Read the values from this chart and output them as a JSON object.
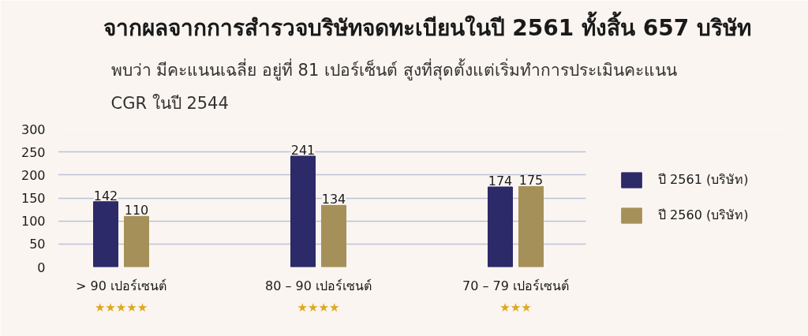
{
  "chart_data": {
    "type": "bar",
    "title": "จากผลจากการสำรวจบริษัทจดทะเบียนในปี 2561 ทั้งสิ้น 657 บริษัท",
    "subtitle": "พบว่า มีคะแนนเฉลี่ย อยู่ที่ 81 เปอร์เซ็นต์ สูงที่สุดตั้งแต่เริ่มทำการประเมินคะแนน\nCGR ในปี 2544",
    "categories": [
      "> 90 เปอร์เซนต์\n★★★★★",
      "80 – 90 เปอร์เซนต์\n★★★★",
      "70 – 79 เปอร์เซนต์\n★★★"
    ],
    "series": [
      {
        "name": "ปี 2561 (บริษัท)",
        "color": "#2c2a68",
        "values": [
          142,
          241,
          174
        ]
      },
      {
        "name": "ปี 2560 (บริษัท)",
        "color": "#a69059",
        "values": [
          110,
          134,
          175
        ]
      }
    ],
    "ylim": [
      0,
      300
    ],
    "yticks": [
      0,
      50,
      100,
      150,
      200,
      250,
      300
    ],
    "grid": "y",
    "legend": "right",
    "data_labels": true
  }
}
